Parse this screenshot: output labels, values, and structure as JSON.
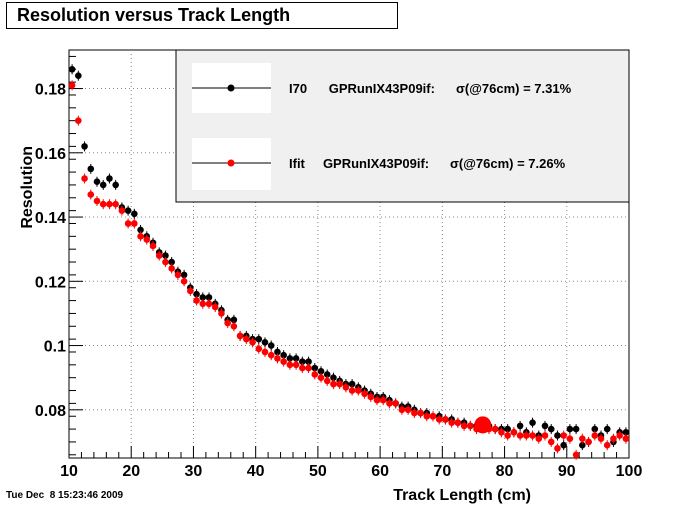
{
  "title": "Resolution versus Track Length",
  "timestamp": "Tue Dec  8 15:23:46 2009",
  "colors": {
    "series_black": "#000000",
    "series_red": "#ff0000",
    "legend_bg": "#f0f0f0",
    "grid": "#888888"
  },
  "chart_data": {
    "type": "scatter",
    "title": "Resolution versus Track Length",
    "xlabel": "Track Length (cm)",
    "ylabel": "Resolution",
    "xlim": [
      10,
      100
    ],
    "ylim": [
      0.065,
      0.192
    ],
    "x_ticks": [
      10,
      20,
      30,
      40,
      50,
      60,
      70,
      80,
      90,
      100
    ],
    "y_ticks": [
      0.08,
      0.1,
      0.12,
      0.14,
      0.16,
      0.18
    ],
    "y_tick_labels": [
      "0.08",
      "0.1",
      "0.12",
      "0.14",
      "0.16",
      "0.18"
    ],
    "grid": true,
    "legend_placement": "top-right",
    "series": [
      {
        "name": "I70",
        "legend_label": "I70      GPRunIX43P09if:",
        "legend_value": "σ(@76cm) =  7.31%",
        "color": "#000000",
        "x": [
          10.5,
          11.5,
          12.5,
          13.5,
          14.5,
          15.5,
          16.5,
          17.5,
          18.5,
          19.5,
          20.5,
          21.5,
          22.5,
          23.5,
          24.5,
          25.5,
          26.5,
          27.5,
          28.5,
          29.5,
          30.5,
          31.5,
          32.5,
          33.5,
          34.5,
          35.5,
          36.5,
          37.5,
          38.5,
          39.5,
          40.5,
          41.5,
          42.5,
          43.5,
          44.5,
          45.5,
          46.5,
          47.5,
          48.5,
          49.5,
          50.5,
          51.5,
          52.5,
          53.5,
          54.5,
          55.5,
          56.5,
          57.5,
          58.5,
          59.5,
          60.5,
          61.5,
          62.5,
          63.5,
          64.5,
          65.5,
          66.5,
          67.5,
          68.5,
          69.5,
          70.5,
          71.5,
          72.5,
          73.5,
          74.5,
          75.5,
          76.5,
          77.5,
          78.5,
          79.5,
          80.5,
          81.5,
          82.5,
          83.5,
          84.5,
          85.5,
          86.5,
          87.5,
          88.5,
          89.5,
          90.5,
          91.5,
          92.5,
          93.5,
          94.5,
          95.5,
          96.5,
          97.5,
          98.5,
          99.5
        ],
        "y": [
          0.186,
          0.184,
          0.162,
          0.155,
          0.151,
          0.15,
          0.152,
          0.15,
          0.143,
          0.142,
          0.141,
          0.136,
          0.134,
          0.132,
          0.129,
          0.128,
          0.126,
          0.123,
          0.122,
          0.118,
          0.116,
          0.115,
          0.115,
          0.113,
          0.111,
          0.108,
          0.108,
          0.103,
          0.103,
          0.102,
          0.102,
          0.101,
          0.1,
          0.098,
          0.097,
          0.096,
          0.096,
          0.095,
          0.095,
          0.093,
          0.092,
          0.091,
          0.09,
          0.089,
          0.088,
          0.088,
          0.087,
          0.086,
          0.085,
          0.084,
          0.084,
          0.083,
          0.082,
          0.081,
          0.081,
          0.08,
          0.079,
          0.079,
          0.078,
          0.078,
          0.077,
          0.077,
          0.076,
          0.076,
          0.075,
          0.075,
          0.075,
          0.075,
          0.074,
          0.074,
          0.074,
          0.073,
          0.075,
          0.073,
          0.076,
          0.072,
          0.075,
          0.074,
          0.072,
          0.069,
          0.074,
          0.074,
          0.069,
          0.07,
          0.074,
          0.072,
          0.074,
          0.07,
          0.073,
          0.073
        ]
      },
      {
        "name": "Ifit",
        "legend_label": "Ifit     GPRunIX43P09if:",
        "legend_value": "σ(@76cm) =  7.26%",
        "color": "#ff0000",
        "x": [
          10.5,
          11.5,
          12.5,
          13.5,
          14.5,
          15.5,
          16.5,
          17.5,
          18.5,
          19.5,
          20.5,
          21.5,
          22.5,
          23.5,
          24.5,
          25.5,
          26.5,
          27.5,
          28.5,
          29.5,
          30.5,
          31.5,
          32.5,
          33.5,
          34.5,
          35.5,
          36.5,
          37.5,
          38.5,
          39.5,
          40.5,
          41.5,
          42.5,
          43.5,
          44.5,
          45.5,
          46.5,
          47.5,
          48.5,
          49.5,
          50.5,
          51.5,
          52.5,
          53.5,
          54.5,
          55.5,
          56.5,
          57.5,
          58.5,
          59.5,
          60.5,
          61.5,
          62.5,
          63.5,
          64.5,
          65.5,
          66.5,
          67.5,
          68.5,
          69.5,
          70.5,
          71.5,
          72.5,
          73.5,
          74.5,
          75.5,
          77.5,
          78.5,
          79.5,
          80.5,
          81.5,
          82.5,
          83.5,
          84.5,
          85.5,
          86.5,
          87.5,
          88.5,
          89.5,
          90.5,
          91.5,
          92.5,
          93.5,
          94.5,
          95.5,
          96.5,
          97.5,
          98.5,
          99.5
        ],
        "y": [
          0.181,
          0.17,
          0.152,
          0.147,
          0.145,
          0.144,
          0.144,
          0.144,
          0.142,
          0.138,
          0.138,
          0.134,
          0.133,
          0.131,
          0.128,
          0.126,
          0.124,
          0.122,
          0.12,
          0.117,
          0.114,
          0.113,
          0.113,
          0.112,
          0.11,
          0.107,
          0.106,
          0.103,
          0.102,
          0.101,
          0.099,
          0.098,
          0.097,
          0.096,
          0.095,
          0.094,
          0.094,
          0.093,
          0.093,
          0.091,
          0.09,
          0.089,
          0.088,
          0.088,
          0.087,
          0.086,
          0.086,
          0.085,
          0.084,
          0.083,
          0.083,
          0.082,
          0.082,
          0.08,
          0.08,
          0.079,
          0.079,
          0.078,
          0.078,
          0.077,
          0.077,
          0.076,
          0.076,
          0.075,
          0.075,
          0.074,
          0.074,
          0.074,
          0.073,
          0.072,
          0.073,
          0.072,
          0.072,
          0.072,
          0.071,
          0.072,
          0.07,
          0.068,
          0.072,
          0.071,
          0.066,
          0.071,
          0.07,
          0.072,
          0.071,
          0.069,
          0.071,
          0.072,
          0.071
        ]
      }
    ],
    "highlight_point": {
      "x": 76.5,
      "y": 0.0753,
      "color": "#ff0000"
    }
  }
}
